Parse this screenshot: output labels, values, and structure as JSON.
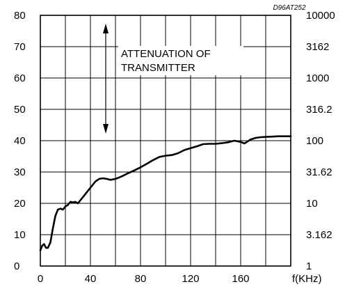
{
  "chart_data": {
    "type": "line",
    "code_label": "D96AT252",
    "annotation": [
      "ATTENUATION OF",
      "TRANSMITTER"
    ],
    "xlabel": "f(KHz)",
    "xlim": [
      0,
      200
    ],
    "ylim": [
      0,
      80
    ],
    "x_ticks": [
      0,
      40,
      80,
      120,
      160
    ],
    "x_tick_labels": [
      "0",
      "40",
      "80",
      "120",
      "160"
    ],
    "y_ticks": [
      0,
      10,
      20,
      30,
      40,
      50,
      60,
      70,
      80
    ],
    "y_tick_labels": [
      "0",
      "10",
      "20",
      "30",
      "40",
      "50",
      "60",
      "70",
      "80"
    ],
    "y2_tick_labels": [
      "1",
      "3.162",
      "10",
      "31.62",
      "100",
      "316.2",
      "1000",
      "3162",
      "10000"
    ],
    "grid": true,
    "series": [
      {
        "x": [
          0,
          1.5,
          3,
          4.5,
          6,
          8,
          10,
          12,
          14,
          16,
          18,
          20,
          22,
          24,
          26,
          28,
          30,
          32,
          35,
          38,
          41,
          44,
          47,
          50,
          53,
          56,
          60,
          65,
          70,
          75,
          80,
          85,
          90,
          95,
          100,
          105,
          110,
          115,
          120,
          125,
          130,
          135,
          140,
          145,
          150,
          155,
          160,
          163,
          165,
          168,
          172,
          176,
          180,
          185,
          190,
          195,
          200
        ],
        "y": [
          5,
          6.5,
          7,
          5.8,
          5.8,
          7.5,
          12,
          16,
          18,
          18.3,
          18,
          19,
          19.5,
          20.5,
          20.3,
          20.5,
          20,
          21,
          22.5,
          24,
          25.5,
          27,
          27.8,
          28,
          27.8,
          27.5,
          27.8,
          28.6,
          29.6,
          30.5,
          31.5,
          32.6,
          33.8,
          34.8,
          35.2,
          35.4,
          36,
          37,
          37.6,
          38.2,
          38.9,
          39,
          39,
          39.2,
          39.5,
          40,
          39.6,
          39.1,
          39.6,
          40.4,
          40.9,
          41.1,
          41.2,
          41.3,
          41.4,
          41.4,
          41.4
        ]
      }
    ]
  }
}
